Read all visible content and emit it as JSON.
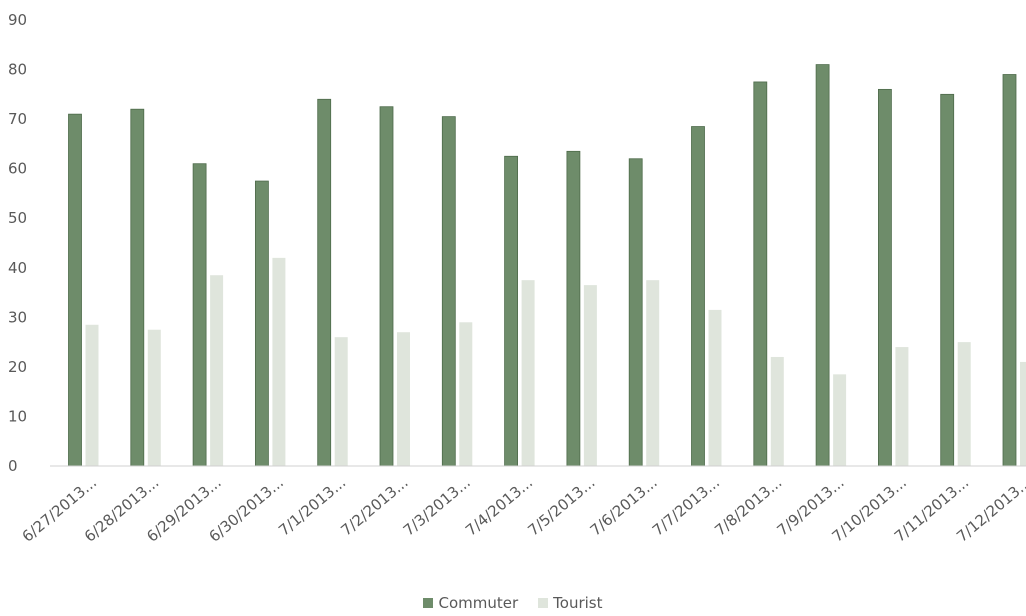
{
  "chart_data": {
    "type": "bar",
    "categories": [
      "6/27/2013...",
      "6/28/2013...",
      "6/29/2013...",
      "6/30/2013...",
      "7/1/2013...",
      "7/2/2013...",
      "7/3/2013...",
      "7/4/2013...",
      "7/5/2013...",
      "7/6/2013...",
      "7/7/2013...",
      "7/8/2013...",
      "7/9/2013...",
      "7/10/2013...",
      "7/11/2013...",
      "7/12/2013..."
    ],
    "series": [
      {
        "name": "Commuter",
        "color": "#6e8c6a",
        "values": [
          71,
          72,
          61,
          57.5,
          74,
          72.5,
          70.5,
          62.5,
          63.5,
          62,
          68.5,
          77.5,
          81,
          76,
          75,
          79
        ]
      },
      {
        "name": "Tourist",
        "color": "#dfe5dc",
        "values": [
          28.5,
          27.5,
          38.5,
          42,
          26,
          27,
          29,
          37.5,
          36.5,
          37.5,
          31.5,
          22,
          18.5,
          24,
          25,
          21
        ]
      }
    ],
    "yticks": [
      "0",
      "10",
      "20",
      "30",
      "40",
      "50",
      "60",
      "70",
      "80",
      "90"
    ],
    "ylim": [
      0,
      90
    ],
    "grid": false,
    "legend_position": "bottom"
  }
}
